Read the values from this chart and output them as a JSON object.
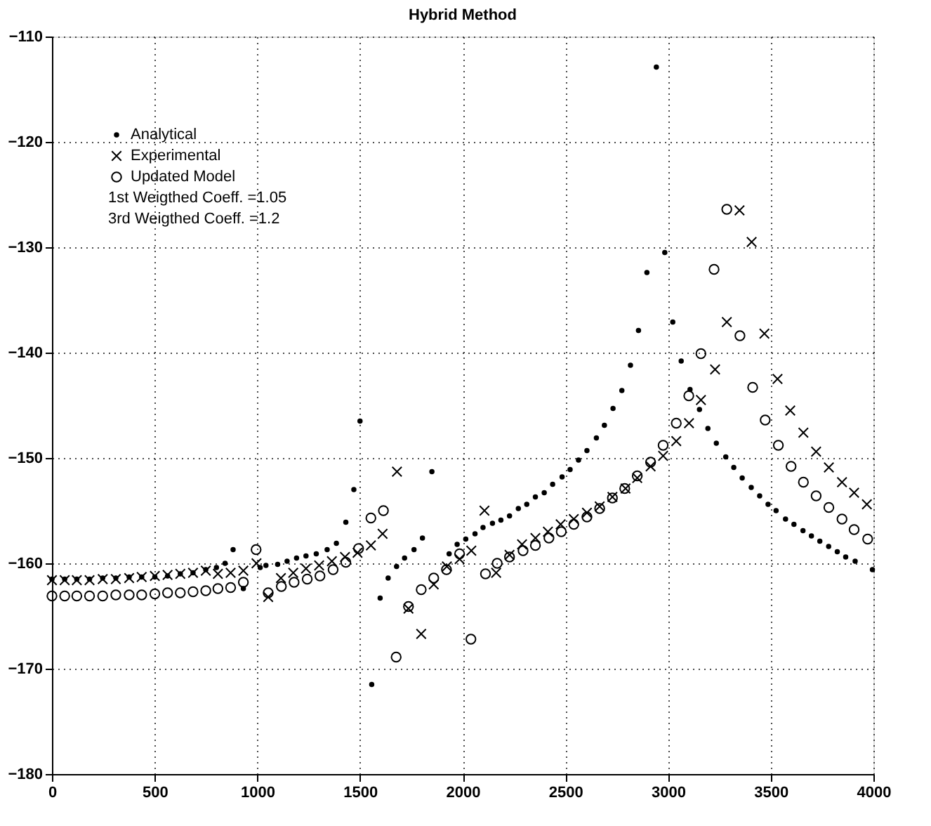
{
  "chart_data": {
    "type": "scatter",
    "title": "Hybrid Method",
    "xlim": [
      0,
      4000
    ],
    "xticks": [
      0,
      500,
      1000,
      1500,
      2000,
      2500,
      3000,
      3500,
      4000
    ],
    "ylim": [
      -180,
      -110
    ],
    "yticks": [
      -180,
      -170,
      -160,
      -150,
      -140,
      -130,
      -120,
      -110
    ],
    "grid": true,
    "legend": "top left",
    "annotations": [
      "1st Weigthed Coeff. =1.05",
      "3rd Weigthed Coeff. =1.2"
    ],
    "series": [
      {
        "name": "Analytical",
        "color": "#000000",
        "x": [
          0,
          62,
          121,
          183,
          247,
          311,
          376,
          437,
          501,
          563,
          625,
          687,
          749,
          801,
          843,
          882,
          932,
          1014,
          1042,
          1099,
          1145,
          1191,
          1237,
          1287,
          1340,
          1385,
          1431,
          1470,
          1500,
          1557,
          1598,
          1637,
          1678,
          1717,
          1763,
          1804,
          1850,
          1934,
          1973,
          2015,
          2060,
          2099,
          2145,
          2186,
          2228,
          2271,
          2312,
          2354,
          2397,
          2438,
          2484,
          2523,
          2564,
          2605,
          2651,
          2690,
          2732,
          2775,
          2817,
          2856,
          2897,
          2943,
          2984,
          3023,
          3064,
          3107,
          3153,
          3194,
          3235,
          3281,
          3320,
          3361,
          3405,
          3446,
          3487,
          3526,
          3572,
          3613,
          3657,
          3698,
          3739,
          3782,
          3824,
          3865,
          3911,
          3995
        ],
        "values": [
          -161.5,
          -161.5,
          -161.5,
          -161.5,
          -161.4,
          -161.4,
          -161.3,
          -161.3,
          -161.3,
          -161.2,
          -161.0,
          -160.9,
          -160.6,
          -160.4,
          -160.0,
          -158.7,
          -162.4,
          -160.4,
          -160.2,
          -160.1,
          -159.8,
          -159.5,
          -159.3,
          -159.1,
          -158.7,
          -158.1,
          -156.1,
          -153.0,
          -146.5,
          -171.5,
          -163.3,
          -161.4,
          -160.3,
          -159.5,
          -158.7,
          -157.6,
          -151.3,
          -159.1,
          -158.2,
          -157.7,
          -157.2,
          -156.6,
          -156.2,
          -155.9,
          -155.5,
          -154.8,
          -154.4,
          -153.7,
          -153.3,
          -152.5,
          -151.8,
          -151.1,
          -150.2,
          -149.3,
          -148.1,
          -146.9,
          -145.3,
          -143.6,
          -141.2,
          -137.9,
          -132.4,
          -112.9,
          -130.5,
          -137.1,
          -140.8,
          -143.5,
          -145.4,
          -147.2,
          -148.6,
          -149.9,
          -150.9,
          -151.9,
          -152.8,
          -153.6,
          -154.4,
          -155.0,
          -155.8,
          -156.3,
          -156.9,
          -157.4,
          -157.9,
          -158.4,
          -158.9,
          -159.4,
          -159.8,
          -160.6
        ]
      },
      {
        "name": "Experimental",
        "color": "#000000",
        "marker": "cross",
        "x": [
          0,
          62,
          121,
          183,
          247,
          311,
          376,
          437,
          501,
          563,
          625,
          687,
          749,
          808,
          870,
          932,
          996,
          1053,
          1115,
          1175,
          1237,
          1301,
          1363,
          1427,
          1488,
          1553,
          1610,
          1680,
          1736,
          1798,
          1859,
          1923,
          1985,
          2042,
          2106,
          2163,
          2228,
          2289,
          2354,
          2415,
          2477,
          2541,
          2605,
          2667,
          2729,
          2793,
          2850,
          2915,
          2976,
          3040,
          3102,
          3160,
          3229,
          3286,
          3348,
          3407,
          3469,
          3533,
          3595,
          3659,
          3721,
          3783,
          3847,
          3906,
          3968
        ],
        "values": [
          -161.6,
          -161.6,
          -161.6,
          -161.6,
          -161.5,
          -161.5,
          -161.4,
          -161.3,
          -161.2,
          -161.1,
          -161.0,
          -160.9,
          -160.7,
          -161.0,
          -160.9,
          -160.7,
          -160.0,
          -163.2,
          -161.4,
          -160.9,
          -160.5,
          -160.2,
          -159.8,
          -159.4,
          -159.0,
          -158.3,
          -157.2,
          -151.3,
          -164.3,
          -166.7,
          -162.0,
          -160.3,
          -159.6,
          -158.8,
          -155.0,
          -160.9,
          -159.2,
          -158.2,
          -157.6,
          -157.0,
          -156.3,
          -155.8,
          -155.2,
          -154.6,
          -153.7,
          -152.9,
          -151.9,
          -150.8,
          -149.8,
          -148.4,
          -146.7,
          -144.5,
          -141.6,
          -137.1,
          -126.5,
          -129.5,
          -138.2,
          -142.5,
          -145.5,
          -147.6,
          -149.4,
          -150.9,
          -152.3,
          -153.3,
          -154.4
        ]
      },
      {
        "name": "Updated Model",
        "color": "#000000",
        "marker": "circle",
        "x": [
          0,
          62,
          121,
          183,
          247,
          311,
          376,
          437,
          501,
          563,
          625,
          687,
          749,
          808,
          870,
          932,
          994,
          1053,
          1117,
          1179,
          1243,
          1305,
          1369,
          1431,
          1493,
          1553,
          1614,
          1676,
          1736,
          1798,
          1859,
          1921,
          1985,
          2040,
          2111,
          2168,
          2228,
          2294,
          2354,
          2420,
          2480,
          2541,
          2605,
          2667,
          2729,
          2789,
          2850,
          2915,
          2976,
          3040,
          3101,
          3160,
          3224,
          3286,
          3350,
          3412,
          3473,
          3537,
          3599,
          3659,
          3721,
          3783,
          3847,
          3906,
          3972
        ],
        "values": [
          -163.1,
          -163.1,
          -163.1,
          -163.1,
          -163.1,
          -163.0,
          -163.0,
          -163.0,
          -162.9,
          -162.8,
          -162.8,
          -162.7,
          -162.6,
          -162.4,
          -162.3,
          -161.8,
          -158.7,
          -162.8,
          -162.2,
          -161.8,
          -161.5,
          -161.2,
          -160.6,
          -159.9,
          -158.6,
          -155.7,
          -155.0,
          -168.9,
          -164.1,
          -162.5,
          -161.4,
          -160.6,
          -159.1,
          -167.2,
          -161.0,
          -160.0,
          -159.4,
          -158.8,
          -158.3,
          -157.6,
          -157.0,
          -156.3,
          -155.6,
          -154.8,
          -153.8,
          -152.9,
          -151.7,
          -150.4,
          -148.8,
          -146.7,
          -144.1,
          -140.1,
          -132.1,
          -126.4,
          -138.4,
          -143.3,
          -146.4,
          -148.8,
          -150.8,
          -152.3,
          -153.6,
          -154.7,
          -155.8,
          -156.8,
          -157.7
        ]
      }
    ]
  }
}
